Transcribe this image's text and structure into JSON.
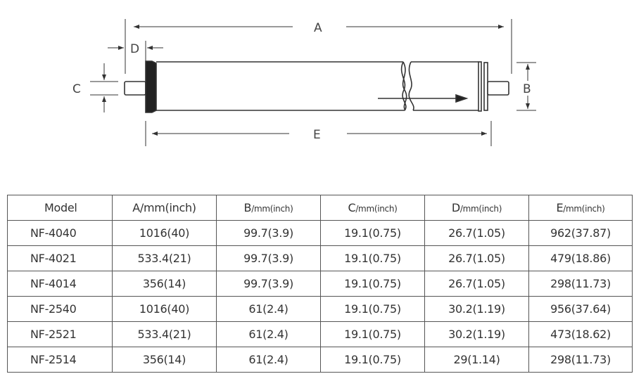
{
  "diagram": {
    "labels": {
      "A": "A",
      "B": "B",
      "C": "C",
      "D": "D",
      "E": "E"
    }
  },
  "table": {
    "headers": [
      {
        "letter": "Model",
        "unit": ""
      },
      {
        "letter": "A/mm(inch)",
        "unit": ""
      },
      {
        "letter": "B",
        "unit": "/mm(inch)"
      },
      {
        "letter": "C",
        "unit": "/mm(inch)"
      },
      {
        "letter": "D",
        "unit": "/mm(inch)"
      },
      {
        "letter": "E",
        "unit": "/mm(inch)"
      }
    ],
    "rows": [
      [
        "NF-4040",
        "1016(40)",
        "99.7(3.9)",
        "19.1(0.75)",
        "26.7(1.05)",
        "962(37.87)"
      ],
      [
        "NF-4021",
        "533.4(21)",
        "99.7(3.9)",
        "19.1(0.75)",
        "26.7(1.05)",
        "479(18.86)"
      ],
      [
        "NF-4014",
        "356(14)",
        "99.7(3.9)",
        "19.1(0.75)",
        "26.7(1.05)",
        "298(11.73)"
      ],
      [
        "NF-2540",
        "1016(40)",
        "61(2.4)",
        "19.1(0.75)",
        "30.2(1.19)",
        "956(37.64)"
      ],
      [
        "NF-2521",
        "533.4(21)",
        "61(2.4)",
        "19.1(0.75)",
        "30.2(1.19)",
        "473(18.62)"
      ],
      [
        "NF-2514",
        "356(14)",
        "61(2.4)",
        "19.1(0.75)",
        "29(1.14)",
        "298(11.73)"
      ]
    ]
  }
}
